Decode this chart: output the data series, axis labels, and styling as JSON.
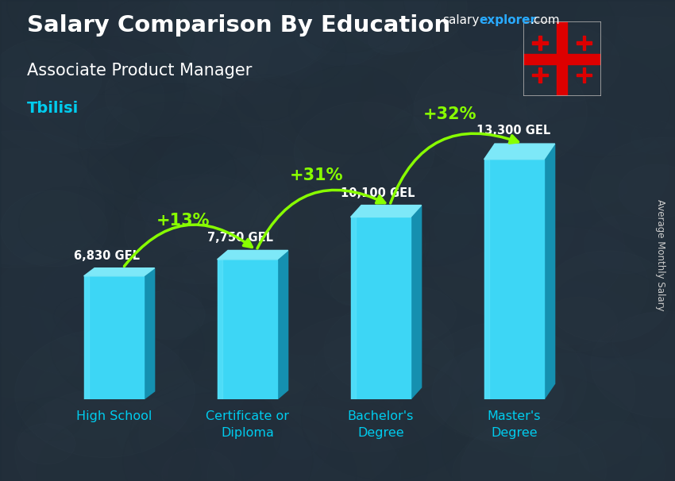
{
  "title": "Salary Comparison By Education",
  "subtitle": "Associate Product Manager",
  "location": "Tbilisi",
  "ylabel": "Average Monthly Salary",
  "website_salary": "salary",
  "website_explorer": "explorer",
  "website_dot_com": ".com",
  "categories": [
    "High School",
    "Certificate or\nDiploma",
    "Bachelor's\nDegree",
    "Master's\nDegree"
  ],
  "values": [
    6830,
    7750,
    10100,
    13300
  ],
  "labels": [
    "6,830 GEL",
    "7,750 GEL",
    "10,100 GEL",
    "13,300 GEL"
  ],
  "pct_changes": [
    "+13%",
    "+31%",
    "+32%"
  ],
  "bar_color_front": "#3dd6f5",
  "bar_color_dark": "#1ba8cc",
  "bar_color_top": "#7de8f8",
  "bar_color_side": "#1590b0",
  "bg_dark": "#2a3540",
  "title_color": "#ffffff",
  "subtitle_color": "#ffffff",
  "location_color": "#00ccee",
  "label_color": "#ffffff",
  "pct_color": "#88ff00",
  "arrow_color": "#88ff00",
  "website_salary_color": "#ffffff",
  "website_explorer_color": "#29aaff",
  "website_com_color": "#ffffff",
  "ylabel_color": "#cccccc",
  "xtick_color": "#00ccee",
  "bar_positions": [
    0,
    1,
    2,
    3
  ],
  "bar_width": 0.45,
  "ylim_max": 16000,
  "figsize": [
    8.5,
    6.06
  ],
  "dpi": 100
}
